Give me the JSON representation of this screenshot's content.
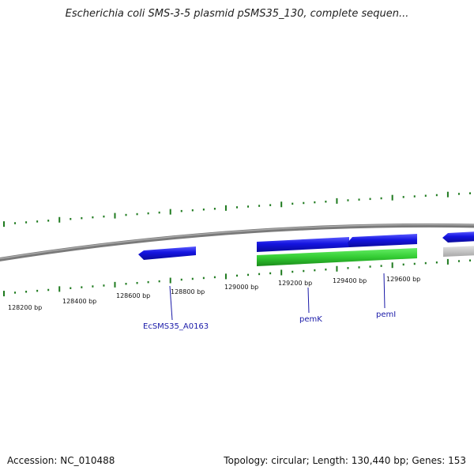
{
  "title": "Escherichia coli SMS-3-5 plasmid pSMS35_130, complete sequen...",
  "footer": {
    "accession": "Accession: NC_010488",
    "summary": "Topology: circular; Length: 130,440 bp; Genes: 153"
  },
  "colors": {
    "backbone": "#8a8a8a",
    "ticks": "#1e7a1e",
    "forward_gene": "#1414e0",
    "reverse_cds": "#33cc33",
    "other_feature": "#c8c8c8",
    "gene_label": "#1a1aa8"
  },
  "scale_labels": [
    "128200 bp",
    "128400 bp",
    "128600 bp",
    "128800 bp",
    "129000 bp",
    "129200 bp",
    "129400 bp",
    "129600 bp"
  ],
  "gene_labels": [
    "EcSMS35_A0163",
    "pemK",
    "pemI"
  ]
}
